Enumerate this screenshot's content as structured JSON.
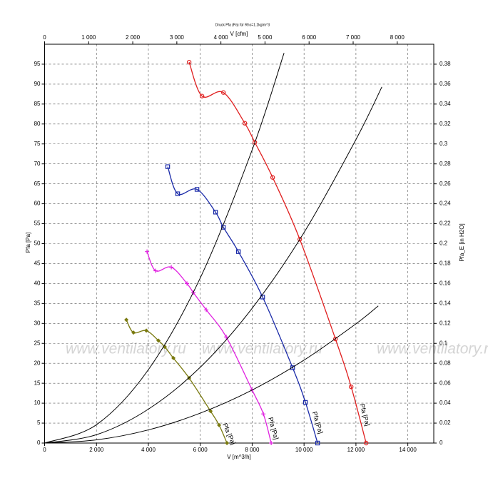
{
  "chart_data": {
    "type": "line",
    "title": "Druck Pfa (Pa) für Rho=1.2kg/m^3",
    "x_label": "V [m^3/h]",
    "x2_label": "V [cfm]",
    "y_label": "Pfa [Pa]",
    "y2_label": "Pfa_E [in H2O]",
    "watermark": "www.ventilatory.ru",
    "xlim": [
      0,
      15000
    ],
    "xticks": [
      0,
      {
        "value": 2000,
        "label": "2 000"
      },
      {
        "value": 4000,
        "label": "4 000"
      },
      {
        "value": 6000,
        "label": "6 000"
      },
      {
        "value": 8000,
        "label": "8 000"
      },
      {
        "value": 10000,
        "label": "10 000"
      },
      {
        "value": 12000,
        "label": "12 000"
      },
      {
        "value": 14000,
        "label": "14 000"
      }
    ],
    "x2lim": [
      0,
      8829
    ],
    "x2ticks": [
      0,
      {
        "value": 1000,
        "label": "1 000"
      },
      {
        "value": 2000,
        "label": "2 000"
      },
      {
        "value": 3000,
        "label": "3 000"
      },
      {
        "value": 4000,
        "label": "4 000"
      },
      {
        "value": 5000,
        "label": "5 000"
      },
      {
        "value": 6000,
        "label": "6 000"
      },
      {
        "value": 7000,
        "label": "7 000"
      },
      {
        "value": 8000,
        "label": "8 000"
      }
    ],
    "ylim": [
      0,
      100
    ],
    "yticks": [
      0,
      5,
      10,
      15,
      20,
      25,
      30,
      35,
      40,
      45,
      50,
      55,
      60,
      65,
      70,
      75,
      80,
      85,
      90,
      95
    ],
    "y2lim": [
      0,
      0.4
    ],
    "y2ticks": [
      0,
      0.02,
      0.04,
      0.06,
      0.08,
      0.1,
      0.12,
      0.14,
      0.16,
      0.18,
      0.2,
      0.22,
      0.24,
      0.26,
      0.28,
      0.3,
      0.32,
      0.34,
      0.36,
      0.38
    ],
    "grid": true,
    "series": [
      {
        "name": "Pfa [Pa]",
        "color": "#e02020",
        "marker": "circle",
        "x": [
          5571,
          6066,
          6891,
          7717,
          8102,
          8789,
          9835,
          11210,
          11816,
          12393
        ],
        "values": [
          95.5,
          87.0,
          87.9,
          80.2,
          75.4,
          66.6,
          51.1,
          26.1,
          14.1,
          0
        ]
      },
      {
        "name": "Pfa [Pa]",
        "color": "#1a2aa8",
        "marker": "square",
        "x": [
          4745,
          5130,
          5873,
          6588,
          6891,
          7469,
          8404,
          9559,
          10054,
          10522
        ],
        "values": [
          69.3,
          62.5,
          63.6,
          57.9,
          54.1,
          48.0,
          36.6,
          18.9,
          10.2,
          0
        ]
      },
      {
        "name": "Pfa [Pa]",
        "color": "#e020e0",
        "marker": "plus",
        "x": [
          3948,
          4278,
          4883,
          5488,
          5736,
          6231,
          7001,
          7992,
          8432,
          8734
        ],
        "values": [
          48.0,
          43.2,
          44.1,
          40.0,
          37.7,
          33.4,
          26.6,
          13.4,
          7.3,
          0
        ]
      },
      {
        "name": "Pfa [Pa]",
        "color": "#7a7a10",
        "marker": "diamond",
        "x": [
          3151,
          3426,
          3921,
          4388,
          4635,
          4965,
          5571,
          6396,
          6726,
          7029
        ],
        "values": [
          30.9,
          27.7,
          28.2,
          25.7,
          24.1,
          21.3,
          16.3,
          8.0,
          4.5,
          0
        ]
      },
      {
        "color": "#000000",
        "x": [
          0,
          2000,
          4000,
          6000,
          8000,
          9229
        ],
        "values": [
          0,
          4.6,
          18.4,
          41.4,
          73.5,
          97.8
        ]
      },
      {
        "color": "#000000",
        "x": [
          0,
          2000,
          4000,
          6000,
          8000,
          10000,
          12000,
          13000
        ],
        "values": [
          0,
          2.1,
          8.5,
          19.0,
          33.8,
          52.8,
          76.1,
          89.3
        ]
      },
      {
        "color": "#000000",
        "x": [
          0,
          2000,
          4000,
          6000,
          8000,
          10000,
          12000,
          12861
        ],
        "values": [
          0,
          0.8,
          3.3,
          7.5,
          13.3,
          20.8,
          29.9,
          34.4
        ]
      }
    ]
  }
}
